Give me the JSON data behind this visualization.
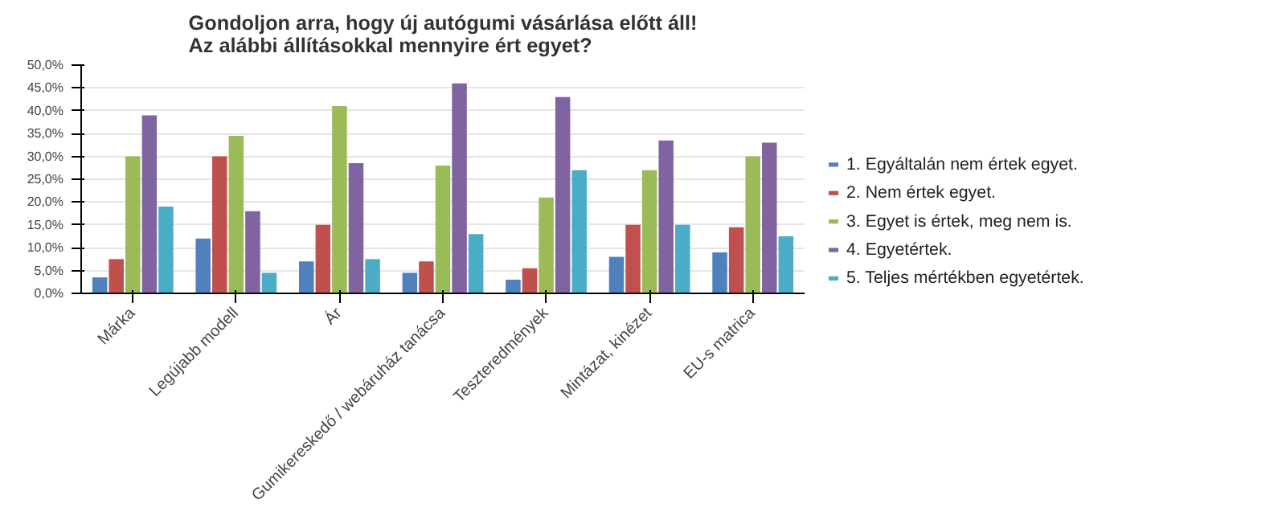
{
  "chart_data": {
    "type": "bar",
    "title": "Gondoljon arra, hogy új autógumi vásárlása előtt áll!\nAz alábbi állításokkal mennyire ért egyet?",
    "categories": [
      "Márka",
      "Legújabb modell",
      "Ár",
      "Gumikereskedő / webáruház tanácsa",
      "Teszteredmények",
      "Mintázat, kinézet",
      "EU-s matrica"
    ],
    "series": [
      {
        "name": "1. Egyáltalán nem értek egyet.",
        "color": "#4f81bd",
        "values": [
          3.5,
          12,
          7,
          4.5,
          3,
          8,
          9
        ]
      },
      {
        "name": "2. Nem értek egyet.",
        "color": "#c0504d",
        "values": [
          7.5,
          30,
          15,
          7,
          5.5,
          15,
          14.5
        ]
      },
      {
        "name": "3. Egyet is értek, meg nem is.",
        "color": "#9bbb59",
        "values": [
          30,
          34.5,
          41,
          28,
          21,
          27,
          30
        ]
      },
      {
        "name": "4. Egyetértek.",
        "color": "#8064a2",
        "values": [
          39,
          18,
          28.5,
          46,
          43,
          33.5,
          33
        ]
      },
      {
        "name": "5. Teljes mértékben egyetértek.",
        "color": "#4bacc6",
        "values": [
          19,
          4.5,
          7.5,
          13,
          27,
          15,
          12.5
        ]
      }
    ],
    "ylim": [
      0,
      50
    ],
    "yticks": [
      {
        "value": 0,
        "label": "0,0%"
      },
      {
        "value": 5,
        "label": "5,0%"
      },
      {
        "value": 10,
        "label": "10,0%"
      },
      {
        "value": 15,
        "label": "15,0%"
      },
      {
        "value": 20,
        "label": "20,0%"
      },
      {
        "value": 25,
        "label": "25,0%"
      },
      {
        "value": 30,
        "label": "30,0%"
      },
      {
        "value": 35,
        "label": "35,0%"
      },
      {
        "value": 40,
        "label": "40,0%"
      },
      {
        "value": 45,
        "label": "45,0%"
      },
      {
        "value": 50,
        "label": "50,0%"
      }
    ],
    "grid": "y",
    "legend": "right"
  }
}
